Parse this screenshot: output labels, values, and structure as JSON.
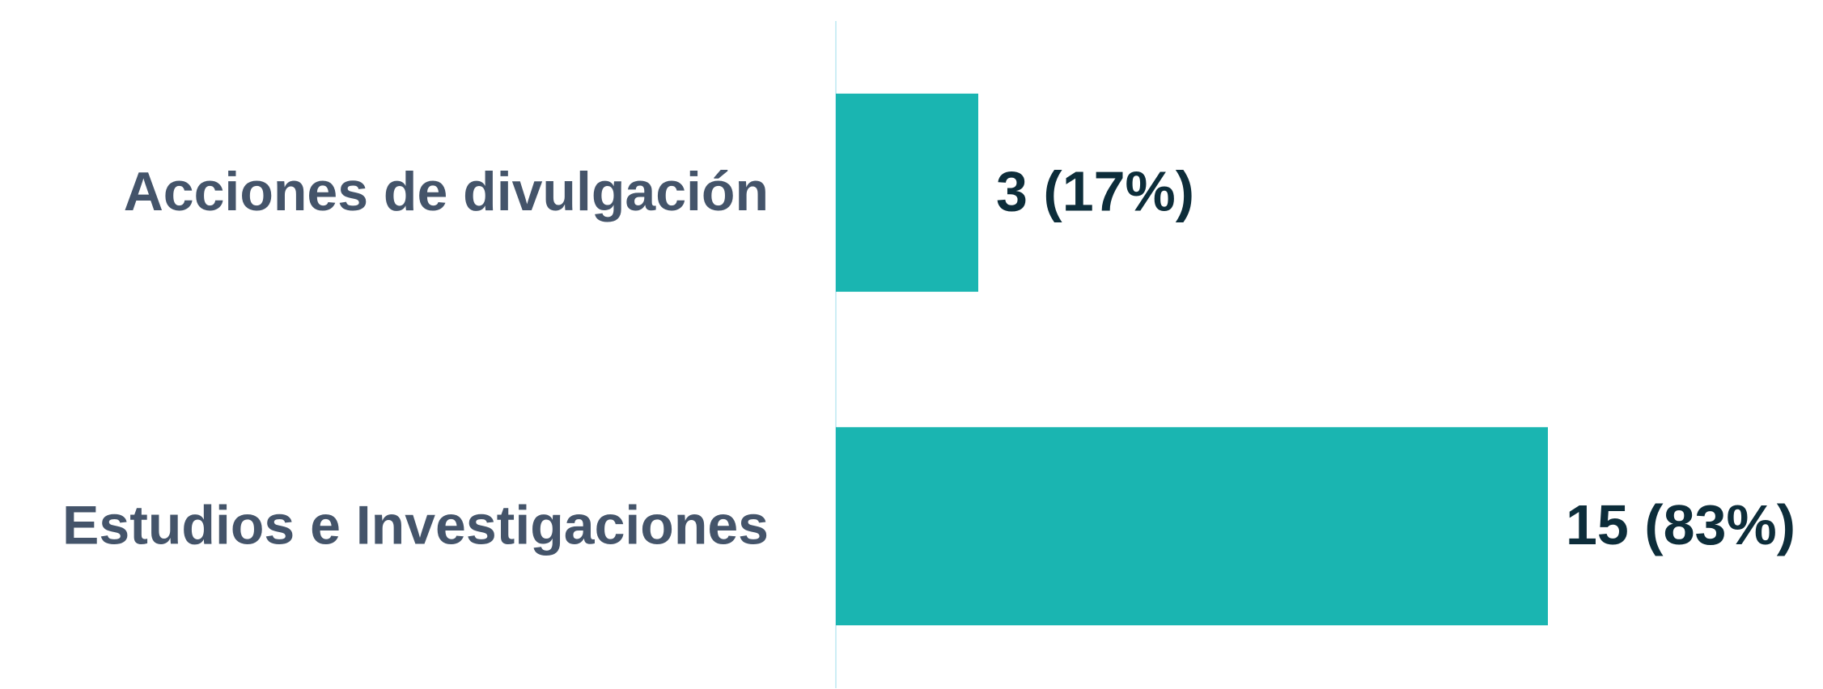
{
  "chart_data": {
    "type": "hbar",
    "categories": [
      "Acciones de divulgación",
      "Estudios e Investigaciones"
    ],
    "values": [
      3,
      15
    ],
    "value_labels": [
      "3 (17%)",
      "15 (83%)"
    ],
    "color": "#1ab5b1"
  }
}
